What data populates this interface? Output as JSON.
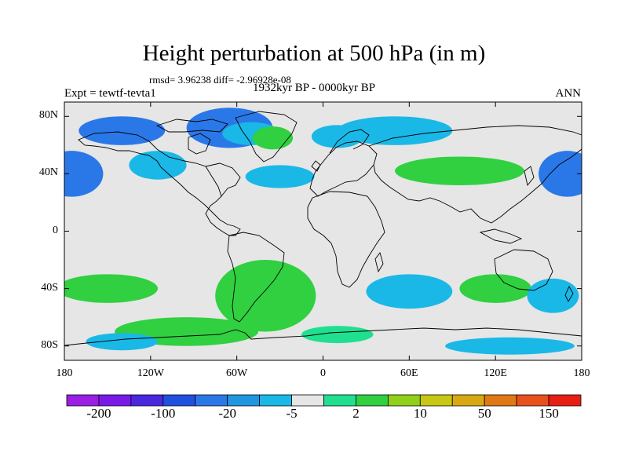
{
  "title": "Height perturbation at 500 hPa (in m)",
  "stats_line": "rmsd= 3.96238 diff= -2.96928e-08",
  "experiment_label": "Expt = tewtf-tevta1",
  "period_label": "1932kyr BP - 0000kyr BP",
  "season_label": "ANN",
  "map": {
    "projection": "cylindrical-equidistant",
    "lon_range": [
      -180,
      180
    ],
    "lat_range": [
      -90,
      90
    ],
    "lat_ticks": [
      {
        "label": "80N",
        "lat": 80
      },
      {
        "label": "40N",
        "lat": 40
      },
      {
        "label": "0",
        "lat": 0
      },
      {
        "label": "40S",
        "lat": -40
      },
      {
        "label": "80S",
        "lat": -80
      }
    ],
    "lon_ticks": [
      {
        "label": "180",
        "lon": -180
      },
      {
        "label": "120W",
        "lon": -120
      },
      {
        "label": "60W",
        "lon": -60
      },
      {
        "label": "0",
        "lon": 0
      },
      {
        "label": "60E",
        "lon": 60
      },
      {
        "label": "120E",
        "lon": 120
      },
      {
        "label": "180",
        "lon": 180
      }
    ],
    "background_color": "#e6e6e6",
    "coastline_color": "#000000",
    "anomaly_regions": [
      {
        "lon": -140,
        "lat": 70,
        "rlon": 30,
        "rlat": 10,
        "level": "-20"
      },
      {
        "lon": -65,
        "lat": 72,
        "rlon": 30,
        "rlat": 14,
        "level": "-20"
      },
      {
        "lon": -50,
        "lat": 68,
        "rlon": 20,
        "rlat": 8,
        "level": "-5"
      },
      {
        "lon": -35,
        "lat": 65,
        "rlon": 14,
        "rlat": 8,
        "level": "10"
      },
      {
        "lon": -175,
        "lat": 40,
        "rlon": 22,
        "rlat": 16,
        "level": "-20"
      },
      {
        "lon": -115,
        "lat": 46,
        "rlon": 20,
        "rlat": 10,
        "level": "-5"
      },
      {
        "lon": -30,
        "lat": 38,
        "rlon": 24,
        "rlat": 8,
        "level": "-5"
      },
      {
        "lon": 10,
        "lat": 66,
        "rlon": 18,
        "rlat": 8,
        "level": "-5"
      },
      {
        "lon": 50,
        "lat": 70,
        "rlon": 40,
        "rlat": 10,
        "level": "-5"
      },
      {
        "lon": 95,
        "lat": 42,
        "rlon": 45,
        "rlat": 10,
        "level": "10"
      },
      {
        "lon": 170,
        "lat": 40,
        "rlon": 20,
        "rlat": 16,
        "level": "-20"
      },
      {
        "lon": -150,
        "lat": -40,
        "rlon": 35,
        "rlat": 10,
        "level": "10"
      },
      {
        "lon": -40,
        "lat": -45,
        "rlon": 35,
        "rlat": 25,
        "level": "10"
      },
      {
        "lon": -95,
        "lat": -70,
        "rlon": 50,
        "rlat": 10,
        "level": "10"
      },
      {
        "lon": 60,
        "lat": -42,
        "rlon": 30,
        "rlat": 12,
        "level": "-5"
      },
      {
        "lon": 120,
        "lat": -40,
        "rlon": 25,
        "rlat": 10,
        "level": "10"
      },
      {
        "lon": 160,
        "lat": -45,
        "rlon": 18,
        "rlat": 12,
        "level": "-5"
      },
      {
        "lon": -140,
        "lat": -77,
        "rlon": 25,
        "rlat": 6,
        "level": "-5"
      },
      {
        "lon": 130,
        "lat": -80,
        "rlon": 45,
        "rlat": 6,
        "level": "-5"
      },
      {
        "lon": 10,
        "lat": -72,
        "rlon": 25,
        "rlat": 6,
        "level": "2"
      }
    ]
  },
  "colorbar": {
    "colors": [
      "#9a1ee6",
      "#7a1ae8",
      "#4a28e0",
      "#2050e0",
      "#2a78e8",
      "#1e96e0",
      "#1ab8e6",
      "#e6e6e6",
      "#20e090",
      "#30d040",
      "#90d018",
      "#c8c814",
      "#d8a814",
      "#e07814",
      "#e8501c",
      "#e81e14"
    ],
    "labels": [
      {
        "text": "-200",
        "boundary": 1
      },
      {
        "text": "-100",
        "boundary": 3
      },
      {
        "text": "-20",
        "boundary": 5
      },
      {
        "text": "-5",
        "boundary": 7
      },
      {
        "text": "2",
        "boundary": 9
      },
      {
        "text": "10",
        "boundary": 11
      },
      {
        "text": "50",
        "boundary": 13
      },
      {
        "text": "150",
        "boundary": 15
      }
    ],
    "level_colors": {
      "-20": "#2a78e8",
      "-5": "#1ab8e6",
      "2": "#20e090",
      "10": "#30d040",
      "20": "#90d018"
    }
  }
}
